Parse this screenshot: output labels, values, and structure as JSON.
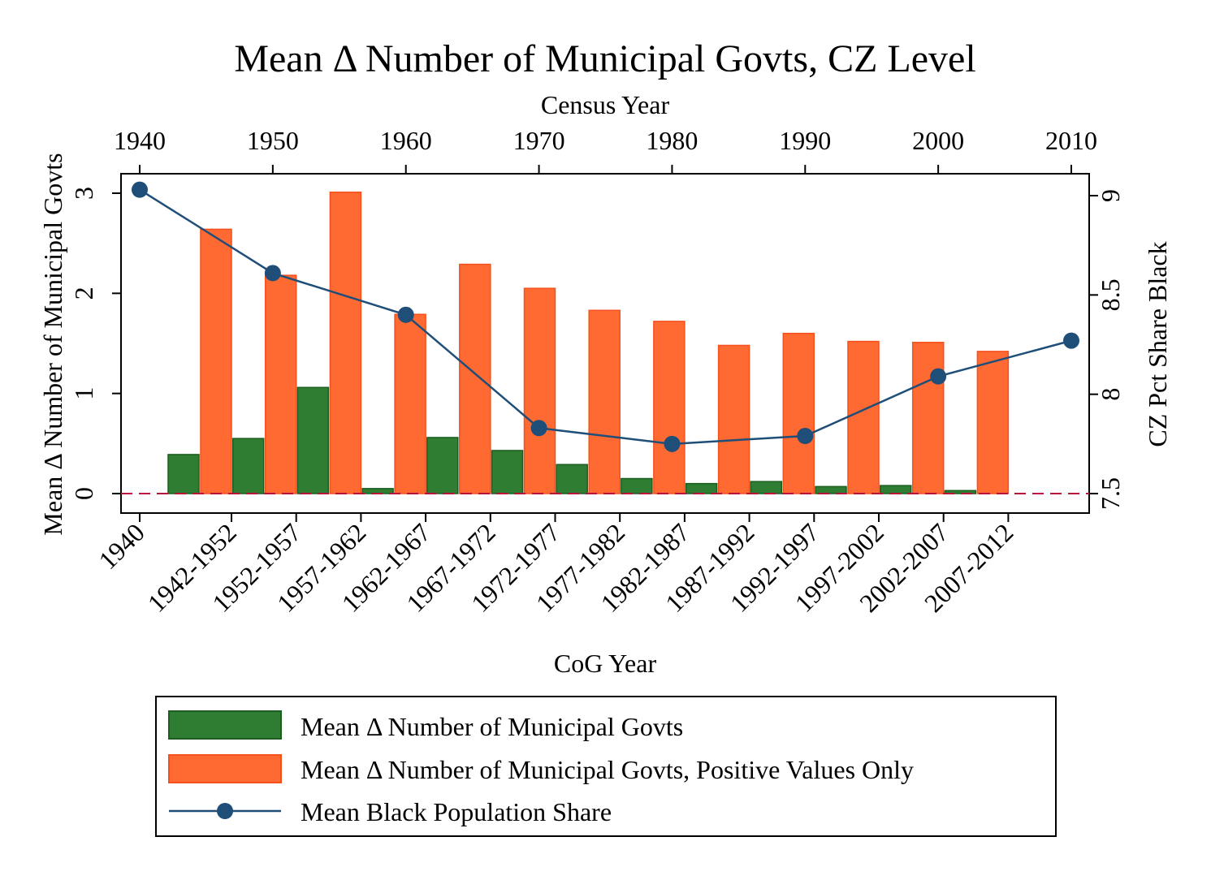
{
  "chart_data": {
    "type": "bar",
    "title": "Mean Δ Number of Municipal Govts, CZ Level",
    "xlabel": "CoG Year",
    "x2label": "Census Year",
    "ylabel": "Mean Δ Number of Municipal Govts",
    "y2label": "CZ Pct Share Black",
    "ylim": [
      0,
      3
    ],
    "y2lim": [
      7.5,
      9
    ],
    "yticks": [
      "0",
      "1",
      "2",
      "3"
    ],
    "y2ticks": [
      "7.5",
      "8",
      "8.5",
      "9"
    ],
    "census_ticks": [
      "1940",
      "1950",
      "1960",
      "1970",
      "1980",
      "1990",
      "2000",
      "2010"
    ],
    "cog_ticks": [
      "1940",
      "1942-1952",
      "1952-1957",
      "1957-1962",
      "1962-1967",
      "1967-1972",
      "1972-1977",
      "1977-1982",
      "1982-1987",
      "1987-1992",
      "1992-1997",
      "1997-2002",
      "2002-2007",
      "2007-2012"
    ],
    "bar_categories": [
      "1942-1952",
      "1952-1957",
      "1957-1962",
      "1962-1967",
      "1967-1972",
      "1972-1977",
      "1977-1982",
      "1982-1987",
      "1987-1992",
      "1992-1997",
      "1997-2002",
      "2002-2007",
      "2007-2012"
    ],
    "series": [
      {
        "name": "Mean Δ Number of Municipal Govts",
        "color": "#2e7d32",
        "values": [
          0.39,
          0.55,
          1.06,
          0.05,
          0.56,
          0.43,
          0.29,
          0.15,
          0.1,
          0.12,
          0.07,
          0.08,
          0.03
        ]
      },
      {
        "name": "Mean Δ Number of Municipal Govts, Positive Values Only",
        "color": "#ff6a33",
        "values": [
          2.64,
          2.18,
          3.01,
          1.79,
          2.29,
          2.05,
          1.83,
          1.72,
          1.48,
          1.6,
          1.52,
          1.51,
          1.42
        ]
      },
      {
        "name": "Mean Black Population Share",
        "color": "#1f4e79",
        "x": [
          1940,
          1950,
          1960,
          1970,
          1980,
          1990,
          2000,
          2010
        ],
        "values": [
          9.03,
          8.61,
          8.4,
          7.83,
          7.75,
          7.79,
          8.09,
          8.27
        ]
      }
    ],
    "legend": "bottom",
    "reference_line": 0
  }
}
